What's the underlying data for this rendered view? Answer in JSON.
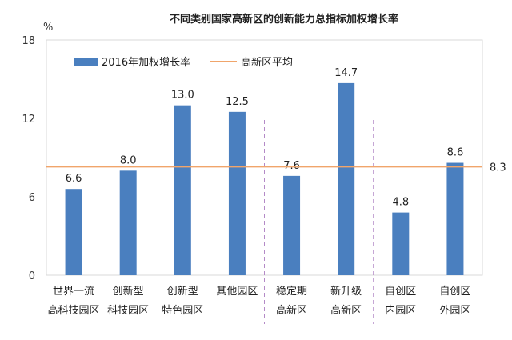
{
  "chart_data": {
    "type": "bar",
    "title": "不同类别国家高新区的创新能力总指标加权增长率",
    "ylabel": "%",
    "ylim": [
      0,
      18
    ],
    "yticks": [
      "0",
      "6",
      "12",
      "18"
    ],
    "series_name": "2016年加权增长率",
    "categories": [
      [
        "世界一流",
        "高科技园区"
      ],
      [
        "创新型",
        "科技园区"
      ],
      [
        "创新型",
        "特色园区"
      ],
      [
        "其他园区",
        ""
      ],
      [
        "稳定期",
        "高新区"
      ],
      [
        "新升级",
        "高新区"
      ],
      [
        "自创区",
        "内园区"
      ],
      [
        "自创区",
        "外园区"
      ]
    ],
    "values": [
      6.6,
      8.0,
      13.0,
      12.5,
      7.6,
      14.7,
      4.8,
      8.6
    ],
    "value_labels": [
      "6.6",
      "8.0",
      "13.0",
      "12.5",
      "7.6",
      "14.7",
      "4.8",
      "8.6"
    ],
    "reference": {
      "name": "高新区平均",
      "value": 8.3,
      "label": "8.3"
    },
    "group_separators_after": [
      3,
      5
    ],
    "colors": {
      "bar": "#4a7fbf",
      "average_line": "#f0a56b",
      "separator": "#b48ac7",
      "axis": "#bfbfbf"
    }
  }
}
